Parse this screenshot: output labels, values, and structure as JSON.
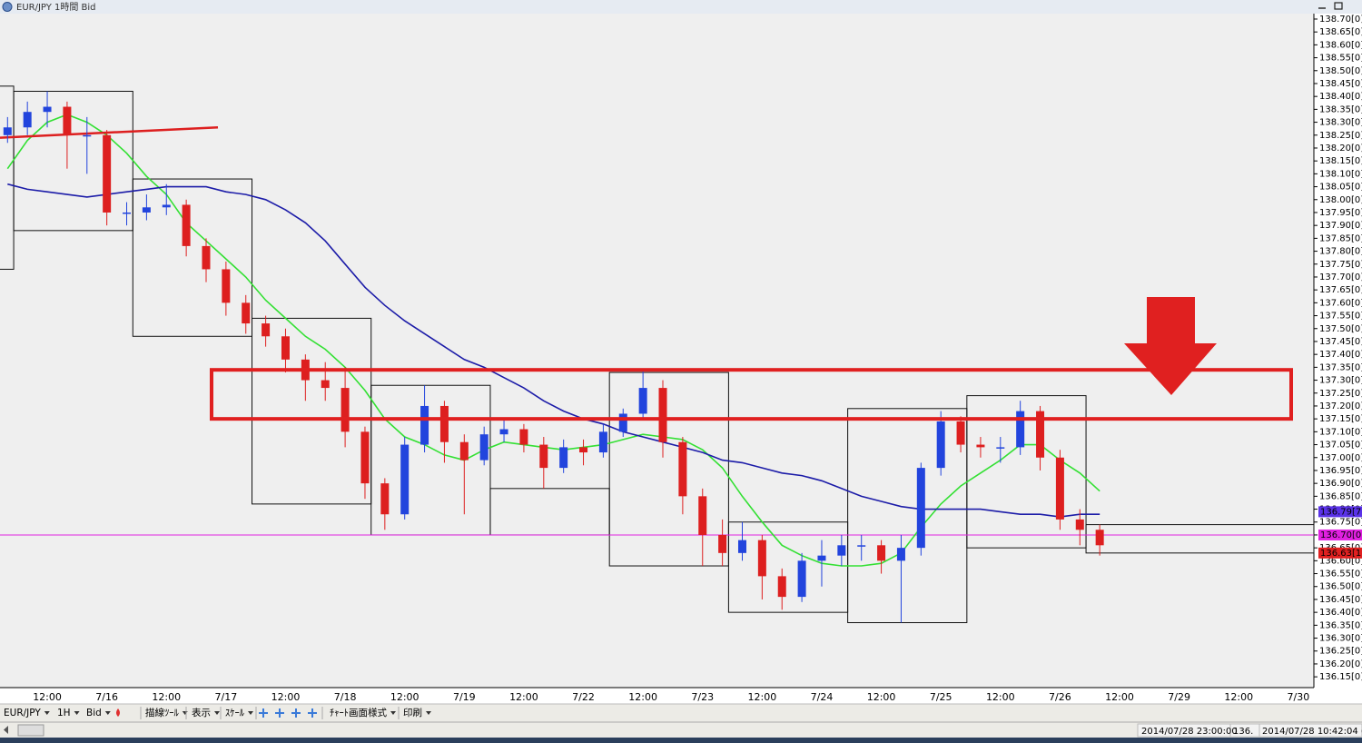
{
  "window": {
    "title": "EUR/JPY 1時間 Bid"
  },
  "chart_data": {
    "type": "candlestick",
    "xticks": [
      "12:00",
      "7/16",
      "12:00",
      "7/17",
      "12:00",
      "7/18",
      "12:00",
      "7/19",
      "12:00",
      "7/22",
      "12:00",
      "7/23",
      "12:00",
      "7/24",
      "12:00",
      "7/25",
      "12:00",
      "7/26",
      "12:00",
      "7/29",
      "12:00",
      "7/30"
    ],
    "ylim": [
      136.11,
      138.72
    ],
    "yticks": [
      {
        "value": 138.7,
        "label": "138.70[0]"
      },
      {
        "value": 138.65,
        "label": "138.65[0]"
      },
      {
        "value": 138.6,
        "label": "138.60[0]"
      },
      {
        "value": 138.55,
        "label": "138.55[0]"
      },
      {
        "value": 138.5,
        "label": "138.50[0]"
      },
      {
        "value": 138.45,
        "label": "138.45[0]"
      },
      {
        "value": 138.4,
        "label": "138.40[0]"
      },
      {
        "value": 138.35,
        "label": "138.35[0]"
      },
      {
        "value": 138.3,
        "label": "138.30[0]"
      },
      {
        "value": 138.25,
        "label": "138.25[0]"
      },
      {
        "value": 138.2,
        "label": "138.20[0]"
      },
      {
        "value": 138.15,
        "label": "138.15[0]"
      },
      {
        "value": 138.1,
        "label": "138.10[0]"
      },
      {
        "value": 138.05,
        "label": "138.05[0]"
      },
      {
        "value": 138.0,
        "label": "138.00[0]"
      },
      {
        "value": 137.95,
        "label": "137.95[0]"
      },
      {
        "value": 137.9,
        "label": "137.90[0]"
      },
      {
        "value": 137.85,
        "label": "137.85[0]"
      },
      {
        "value": 137.8,
        "label": "137.80[0]"
      },
      {
        "value": 137.75,
        "label": "137.75[0]"
      },
      {
        "value": 137.7,
        "label": "137.70[0]"
      },
      {
        "value": 137.65,
        "label": "137.65[0]"
      },
      {
        "value": 137.6,
        "label": "137.60[0]"
      },
      {
        "value": 137.55,
        "label": "137.55[0]"
      },
      {
        "value": 137.5,
        "label": "137.50[0]"
      },
      {
        "value": 137.45,
        "label": "137.45[0]"
      },
      {
        "value": 137.4,
        "label": "137.40[0]"
      },
      {
        "value": 137.35,
        "label": "137.35[0]"
      },
      {
        "value": 137.3,
        "label": "137.30[0]"
      },
      {
        "value": 137.25,
        "label": "137.25[0]"
      },
      {
        "value": 137.2,
        "label": "137.20[0]"
      },
      {
        "value": 137.15,
        "label": "137.15[0]"
      },
      {
        "value": 137.1,
        "label": "137.10[0]"
      },
      {
        "value": 137.05,
        "label": "137.05[0]"
      },
      {
        "value": 137.0,
        "label": "137.00[0]"
      },
      {
        "value": 136.95,
        "label": "136.95[0]"
      },
      {
        "value": 136.9,
        "label": "136.90[0]"
      },
      {
        "value": 136.85,
        "label": "136.85[0]"
      },
      {
        "value": 136.8,
        "label": "136.80[0]"
      },
      {
        "value": 136.75,
        "label": "136.75[0]"
      },
      {
        "value": 136.7,
        "label": "136.70[0]"
      },
      {
        "value": 136.65,
        "label": "136.65[0]"
      },
      {
        "value": 136.6,
        "label": "136.60[0]"
      },
      {
        "value": 136.55,
        "label": "136.55[0]"
      },
      {
        "value": 136.5,
        "label": "136.50[0]"
      },
      {
        "value": 136.45,
        "label": "136.45[0]"
      },
      {
        "value": 136.4,
        "label": "136.40[0]"
      },
      {
        "value": 136.35,
        "label": "136.35[0]"
      },
      {
        "value": 136.3,
        "label": "136.30[0]"
      },
      {
        "value": 136.25,
        "label": "136.25[0]"
      },
      {
        "value": 136.2,
        "label": "136.20[0]"
      },
      {
        "value": 136.15,
        "label": "136.15[0]"
      }
    ],
    "open": [
      138.25,
      138.28,
      138.34,
      138.36,
      138.25,
      138.25,
      137.95,
      137.95,
      137.97,
      137.98,
      137.82,
      137.73,
      137.6,
      137.52,
      137.47,
      137.38,
      137.3,
      137.27,
      137.1,
      136.9,
      136.78,
      137.05,
      137.2,
      137.06,
      136.99,
      137.09,
      137.11,
      137.05,
      136.96,
      137.04,
      137.02,
      137.1,
      137.17,
      137.27,
      137.06,
      136.85,
      136.7,
      136.63,
      136.68,
      136.54,
      136.46,
      136.6,
      136.62,
      136.66,
      136.66,
      136.6,
      136.65,
      136.96,
      137.14,
      137.05,
      137.04,
      137.04,
      137.18,
      137.0,
      136.76,
      136.72
    ],
    "high": [
      138.32,
      138.38,
      138.42,
      138.38,
      138.32,
      138.27,
      137.99,
      138.02,
      138.06,
      138.0,
      137.85,
      137.76,
      137.63,
      137.55,
      137.5,
      137.4,
      137.37,
      137.35,
      137.12,
      136.92,
      137.08,
      137.28,
      137.22,
      137.09,
      137.12,
      137.15,
      137.13,
      137.08,
      137.07,
      137.07,
      137.13,
      137.19,
      137.34,
      137.3,
      137.08,
      136.88,
      136.76,
      136.75,
      136.7,
      136.57,
      136.63,
      136.68,
      136.7,
      136.7,
      136.68,
      136.7,
      136.98,
      137.18,
      137.16,
      137.08,
      137.08,
      137.22,
      137.2,
      137.03,
      136.8,
      136.74
    ],
    "low": [
      138.22,
      138.25,
      138.28,
      138.12,
      138.1,
      137.9,
      137.9,
      137.92,
      137.94,
      137.78,
      137.68,
      137.55,
      137.48,
      137.43,
      137.33,
      137.22,
      137.22,
      137.04,
      136.84,
      136.72,
      136.76,
      137.02,
      136.98,
      136.78,
      136.97,
      137.06,
      137.02,
      136.88,
      136.94,
      136.97,
      137.0,
      137.08,
      137.15,
      137.0,
      136.78,
      136.58,
      136.58,
      136.6,
      136.45,
      136.41,
      136.44,
      136.5,
      136.58,
      136.6,
      136.55,
      136.36,
      136.62,
      136.93,
      137.02,
      137.0,
      136.98,
      137.01,
      136.95,
      136.72,
      136.66,
      136.62
    ],
    "close": [
      138.28,
      138.34,
      138.36,
      138.25,
      138.25,
      137.95,
      137.95,
      137.97,
      137.98,
      137.82,
      137.73,
      137.6,
      137.52,
      137.47,
      137.38,
      137.3,
      137.27,
      137.1,
      136.9,
      136.78,
      137.05,
      137.2,
      137.06,
      136.99,
      137.09,
      137.11,
      137.05,
      136.96,
      137.04,
      137.02,
      137.1,
      137.17,
      137.27,
      137.06,
      136.85,
      136.7,
      136.63,
      136.68,
      136.54,
      136.46,
      136.6,
      136.62,
      136.66,
      136.66,
      136.6,
      136.65,
      136.96,
      137.14,
      137.05,
      137.04,
      137.04,
      137.18,
      137.0,
      136.76,
      136.72,
      136.66
    ],
    "up_color": "#2244dd",
    "down_color": "#dd1f1f",
    "lines": [
      {
        "color": "#33e033",
        "values": [
          138.12,
          138.23,
          138.3,
          138.33,
          138.3,
          138.25,
          138.18,
          138.09,
          138.02,
          137.91,
          137.84,
          137.77,
          137.7,
          137.61,
          137.54,
          137.47,
          137.42,
          137.35,
          137.26,
          137.15,
          137.08,
          137.05,
          137.01,
          136.99,
          137.03,
          137.06,
          137.05,
          137.04,
          137.03,
          137.04,
          137.05,
          137.07,
          137.09,
          137.08,
          137.07,
          137.03,
          136.96,
          136.85,
          136.75,
          136.66,
          136.62,
          136.59,
          136.58,
          136.58,
          136.59,
          136.63,
          136.73,
          136.82,
          136.89,
          136.94,
          136.99,
          137.05,
          137.05,
          136.99,
          136.94,
          136.87
        ]
      },
      {
        "color": "#1c1ca8",
        "values": [
          138.06,
          138.04,
          138.03,
          138.02,
          138.01,
          138.02,
          138.03,
          138.04,
          138.05,
          138.05,
          138.05,
          138.03,
          138.02,
          138.0,
          137.96,
          137.91,
          137.84,
          137.75,
          137.66,
          137.59,
          137.53,
          137.48,
          137.43,
          137.38,
          137.35,
          137.31,
          137.27,
          137.22,
          137.18,
          137.15,
          137.13,
          137.1,
          137.08,
          137.06,
          137.04,
          137.02,
          136.99,
          136.98,
          136.96,
          136.94,
          136.93,
          136.91,
          136.88,
          136.85,
          136.83,
          136.81,
          136.8,
          136.8,
          136.8,
          136.8,
          136.79,
          136.78,
          136.78,
          136.77,
          136.78,
          136.78
        ]
      }
    ],
    "trendline": {
      "color": "#dd1f1f",
      "values": [
        138.24,
        138.28
      ]
    },
    "zone": {
      "color": "#e02020",
      "values": [
        137.15,
        137.34
      ]
    },
    "range_boxes": {
      "high": [
        138.44,
        138.42,
        138.08,
        137.54,
        137.28,
        136.88,
        137.33,
        136.75,
        137.19,
        137.24,
        136.74
      ],
      "low": [
        137.73,
        137.88,
        137.47,
        136.82,
        136.7,
        136.7,
        136.58,
        136.4,
        136.36,
        136.65,
        136.63
      ]
    },
    "price_labels": [
      {
        "value": 136.79,
        "label": "136.79[7",
        "color": "#5a32e8"
      },
      {
        "value": 136.7,
        "label": "136.70[0",
        "color": "#e020e0"
      },
      {
        "value": 136.63,
        "label": "136.63[1",
        "color": "#e02020"
      }
    ]
  },
  "toolbar": [
    "EUR/JPY",
    "1H",
    "Bid",
    "描線ﾂｰﾙ",
    "表示",
    "ｽｹｰﾙ",
    "ﾁｬｰﾄ画面様式",
    "印刷"
  ],
  "status": [
    "2014/07/28 23:00:00",
    "136.",
    "2014/07/28 10:42:04 (Lo"
  ]
}
